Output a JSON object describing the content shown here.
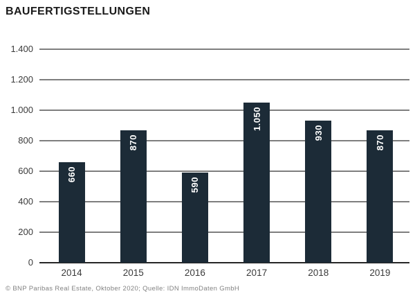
{
  "title": "BAUFERTIGSTELLUNGEN",
  "footer": "© BNP Paribas Real Estate, Oktober 2020; Quelle: IDN ImmoDaten GmbH",
  "colors": {
    "bar": "#1c2b37",
    "bar_value_label": "#ffffff",
    "gridline": "#7e7e7e",
    "zero_axis_line": "#262626",
    "tick_label": "#3a3a3a",
    "title_text": "#1a1a1a",
    "footer_text": "#828282",
    "background": "#ffffff"
  },
  "chart_data": {
    "type": "bar",
    "title": "BAUFERTIGSTELLUNGEN",
    "categories": [
      "2014",
      "2015",
      "2016",
      "2017",
      "2018",
      "2019"
    ],
    "values": [
      660,
      870,
      590,
      1050,
      930,
      870
    ],
    "bar_labels": [
      "660",
      "870",
      "590",
      "1.050",
      "930",
      "870"
    ],
    "xlabel": "",
    "ylabel": "",
    "ylim": [
      0,
      1400
    ],
    "yticks": [
      0,
      200,
      400,
      600,
      800,
      1000,
      1200,
      1400
    ],
    "ytick_labels": [
      "0",
      "200",
      "400",
      "600",
      "800",
      "1.000",
      "1.200",
      "1.400"
    ],
    "grid": true,
    "legend": false,
    "value_label_position": "inside-top",
    "value_label_rotation": -90,
    "source_note": "© BNP Paribas Real Estate, Oktober 2020; Quelle: IDN ImmoDaten GmbH"
  }
}
